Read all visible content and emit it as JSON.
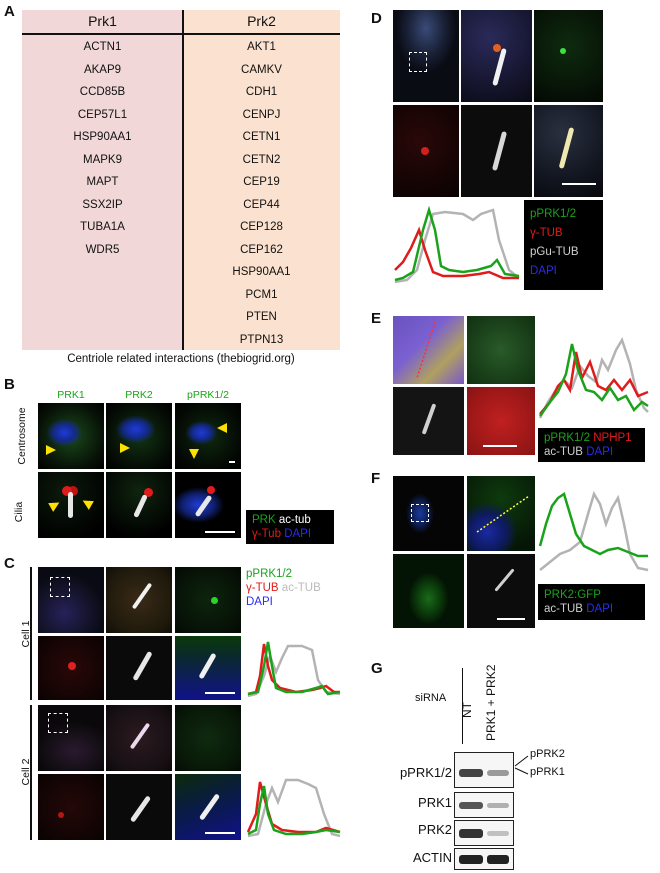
{
  "panels": {
    "A": "A",
    "B": "B",
    "C": "C",
    "D": "D",
    "E": "E",
    "F": "F",
    "G": "G"
  },
  "table": {
    "col1_header": "Prk1",
    "col2_header": "Prk2",
    "col1_items": [
      "ACTN1",
      "AKAP9",
      "CCD85B",
      "CEP57L1",
      "HSP90AA1",
      "MAPK9",
      "MAPT",
      "SSX2IP",
      "TUBA1A",
      "WDR5"
    ],
    "col2_items": [
      "AKT1",
      "CAMKV",
      "CDH1",
      "CENPJ",
      "CETN1",
      "CETN2",
      "CEP19",
      "CEP44",
      "CEP128",
      "CEP162",
      "HSP90AA1",
      "PCM1",
      "PTEN",
      "PTPN13"
    ],
    "caption": "Centriole related interactions (thebiogrid.org)",
    "col1_bg": "#f1d7d8",
    "col2_bg": "#fbe2d0"
  },
  "panelB": {
    "col_labels": [
      "PRK1",
      "PRK2",
      "pPRK1/2"
    ],
    "row_labels": [
      "Centrosome",
      "Cilia"
    ],
    "legend": {
      "l1a": "PRK",
      "l1b": "ac-tub",
      "l2a": "γ-Tub",
      "l2b": "DAPI"
    }
  },
  "panelC": {
    "legend": {
      "l1": "pPRK1/2",
      "l2a": "γ-TUB",
      "l2b": "ac-TUB",
      "l3": "DAPI"
    },
    "cell_labels": [
      "Cell 1",
      "Cell 2"
    ]
  },
  "panelD": {
    "legend": [
      "pPRK1/2",
      "γ-TUB",
      "pGu-TUB",
      "DAPI"
    ]
  },
  "panelE": {
    "legend": {
      "l1a": "pPRK1/2",
      "l1b": "NPHP1",
      "l2a": "ac-TUB",
      "l2b": "DAPI"
    }
  },
  "panelF": {
    "legend": {
      "l1": "PRK2:GFP",
      "l2a": "ac-TUB",
      "l2b": "DAPI"
    }
  },
  "panelG": {
    "sirna_label": "siRNA",
    "lanes": [
      "NT",
      "PRK1 + PRK2"
    ],
    "rows": [
      "pPRK1/2",
      "PRK1",
      "PRK2",
      "ACTIN"
    ],
    "band_labels": [
      "pPRK2",
      "pPRK1"
    ]
  },
  "colors": {
    "green": "#1aa31a",
    "red": "#e01b1b",
    "gray": "#b3b3b3",
    "blue": "#2a2af5",
    "white": "#ffffff"
  }
}
